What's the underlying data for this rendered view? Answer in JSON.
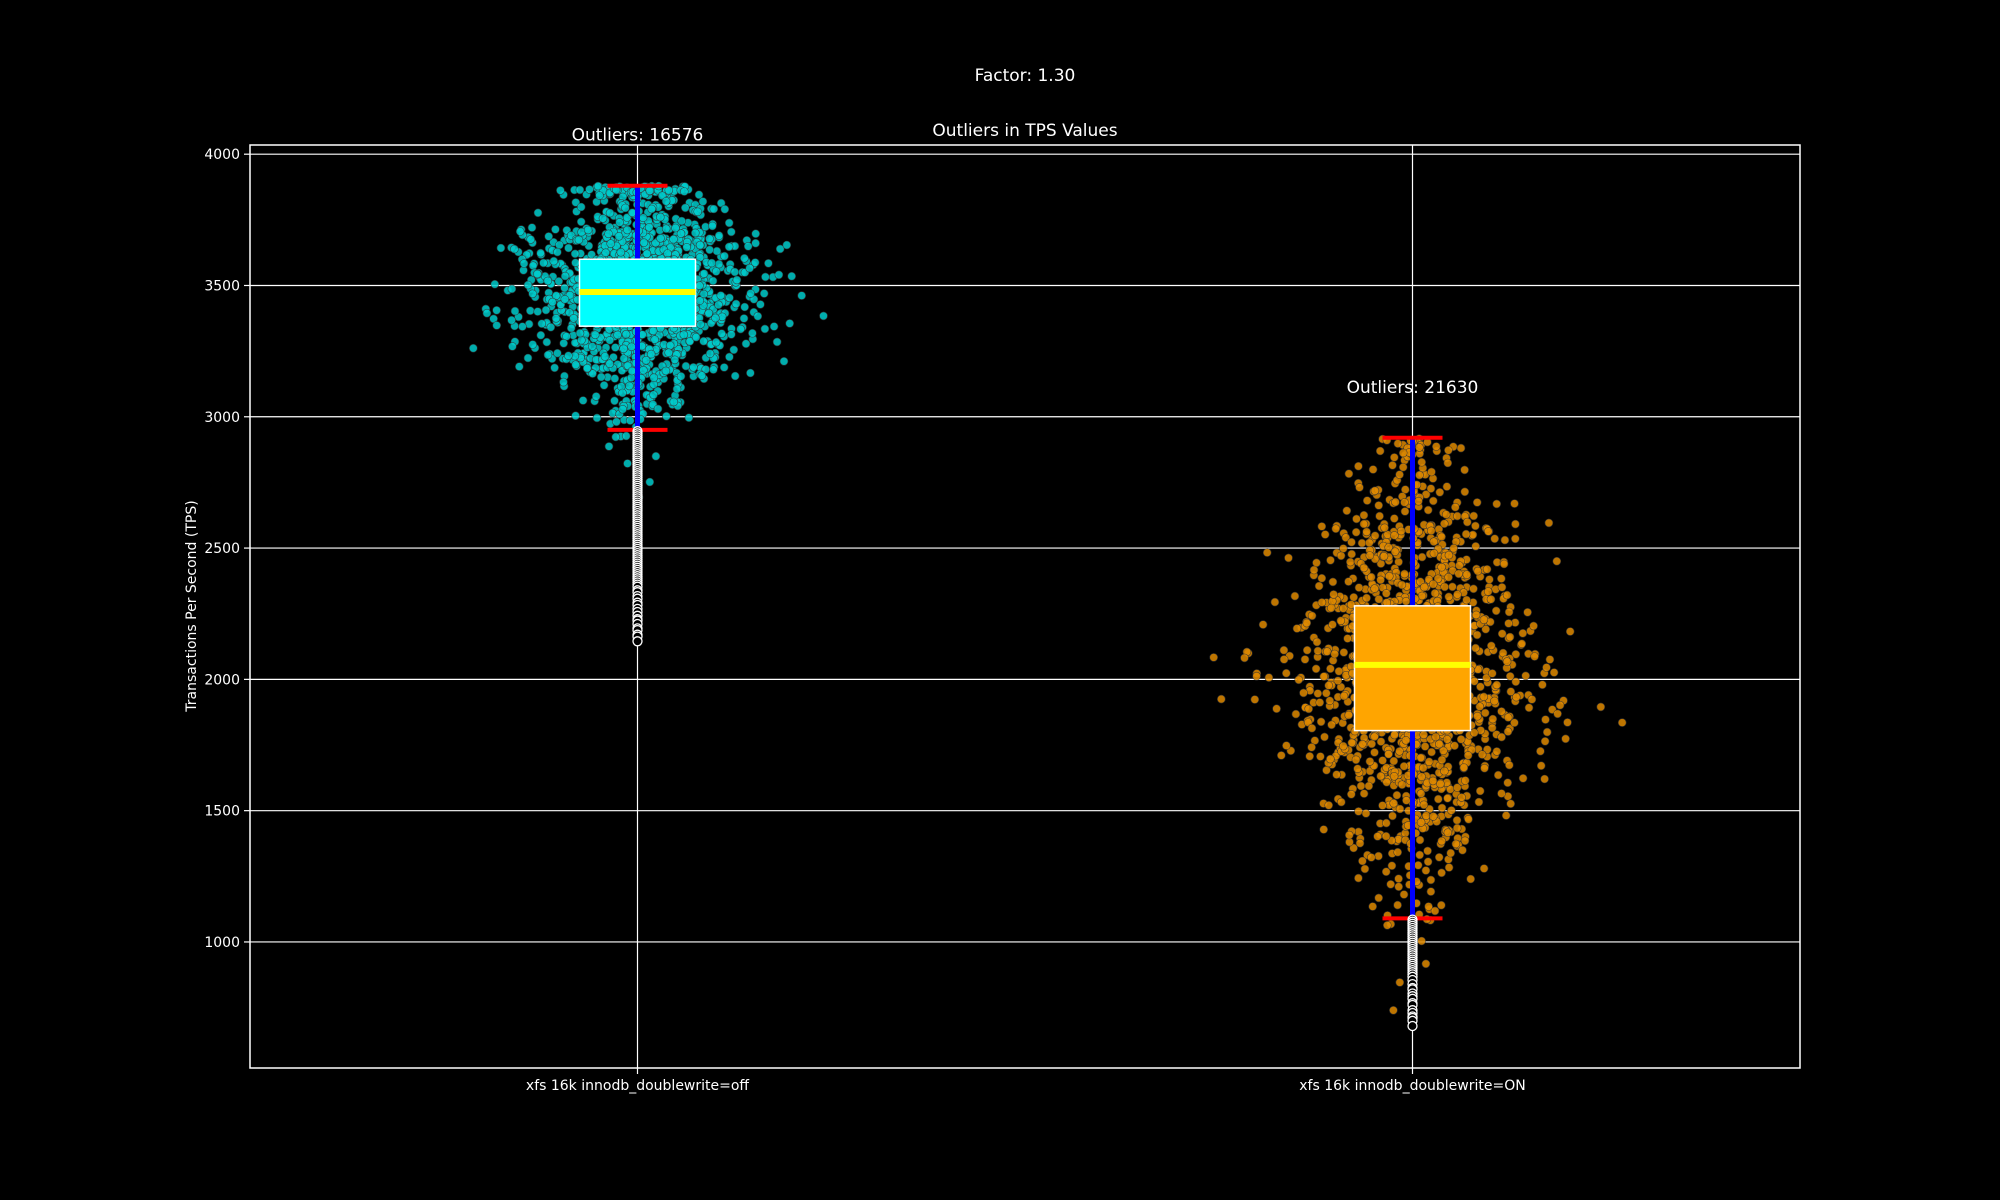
{
  "figure": {
    "suptitle": "Factor: 1.30",
    "background": "#000000",
    "foreground": "#ffffff"
  },
  "chart_data": {
    "type": "box",
    "title": "Outliers in TPS Values",
    "xlabel": "",
    "ylabel": "Transactions Per Second (TPS)",
    "ylim": [
      520,
      4035
    ],
    "yticks": [
      1000,
      1500,
      2000,
      2500,
      3000,
      3500,
      4000
    ],
    "grid": true,
    "categories": [
      "xfs 16k innodb_doublewrite=off",
      "xfs 16k innodb_doublewrite=ON"
    ],
    "groups": [
      {
        "label": "xfs 16k innodb_doublewrite=off",
        "outlier_annotation": "Outliers: 16576",
        "box_color": "#00ffff",
        "scatter_color": "#00cccc",
        "q1": 3345,
        "median": 3475,
        "q3": 3600,
        "whisker_low": 2950,
        "whisker_high": 3880,
        "points_min": 2145,
        "points_max": 3880,
        "outliers_min": 2145
      },
      {
        "label": "xfs 16k innodb_doublewrite=ON",
        "outlier_annotation": "Outliers: 21630",
        "box_color": "#ffa500",
        "scatter_color": "#e08a00",
        "q1": 1805,
        "median": 2055,
        "q3": 2280,
        "whisker_low": 1090,
        "whisker_high": 2920,
        "points_min": 680,
        "points_max": 2920,
        "outliers_min": 680
      }
    ],
    "styles": {
      "median_color": "#ffff00",
      "whisker_color": "#0000ff",
      "cap_color": "#ff0000",
      "flier_color": "#ffffff",
      "grid_color": "#ffffff"
    }
  }
}
